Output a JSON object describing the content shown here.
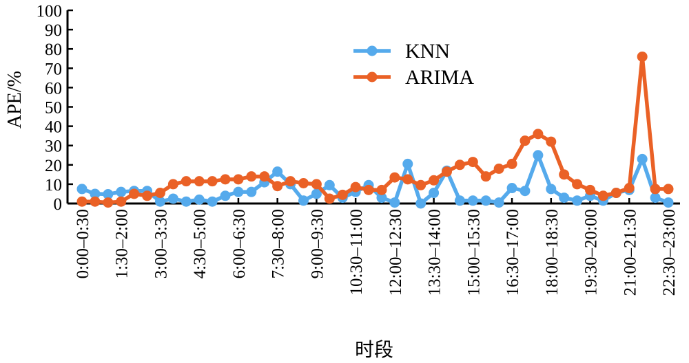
{
  "chart_data": {
    "type": "line",
    "xlabel": "时段",
    "ylabel": "APE/%",
    "ylim": [
      0,
      100
    ],
    "yticks": [
      "0",
      "10",
      "20",
      "30",
      "40",
      "50",
      "60",
      "70",
      "80",
      "90",
      "100"
    ],
    "x_tick_labels": [
      "0:00–0:30",
      "1:30–2:00",
      "3:00–3:30",
      "4:30–5:00",
      "6:00–6:30",
      "7:30–8:00",
      "9:00–9:30",
      "10:30–11:00",
      "12:00–12:30",
      "13:30–14:00",
      "15:00–15:30",
      "16:30–17:00",
      "18:00–18:30",
      "19:30–20:00",
      "21:00–21:30",
      "22:30–23:00"
    ],
    "grid": false,
    "legend_position": "top-center",
    "series": [
      {
        "name": "KNN",
        "color": "#55aaec",
        "values": [
          7.5,
          5,
          4.8,
          6,
          6.5,
          6.5,
          1,
          2.5,
          1,
          2,
          1,
          4,
          6,
          6,
          11,
          16.5,
          10,
          1.5,
          5,
          9.5,
          3,
          6,
          9.5,
          3,
          0.5,
          20.5,
          0,
          5.5,
          17,
          1.5,
          1.5,
          1.5,
          0.5,
          8,
          6.5,
          25,
          7.5,
          3,
          1.5,
          4,
          1.5,
          5.5,
          7,
          23,
          3,
          0.5
        ]
      },
      {
        "name": "ARIMA",
        "color": "#ea6126",
        "values": [
          1,
          1,
          0.5,
          1,
          5,
          4,
          5.5,
          10,
          11.5,
          11.5,
          11.5,
          12.5,
          12.5,
          14,
          14,
          9,
          11.5,
          10.5,
          10,
          2.5,
          4.5,
          8.5,
          7,
          7,
          13.5,
          12.5,
          9.5,
          12,
          16.5,
          20,
          21.5,
          14,
          18,
          20.5,
          32.5,
          36,
          32,
          15,
          10,
          7,
          4,
          5.5,
          8,
          76,
          7.5,
          7.5
        ]
      }
    ]
  }
}
